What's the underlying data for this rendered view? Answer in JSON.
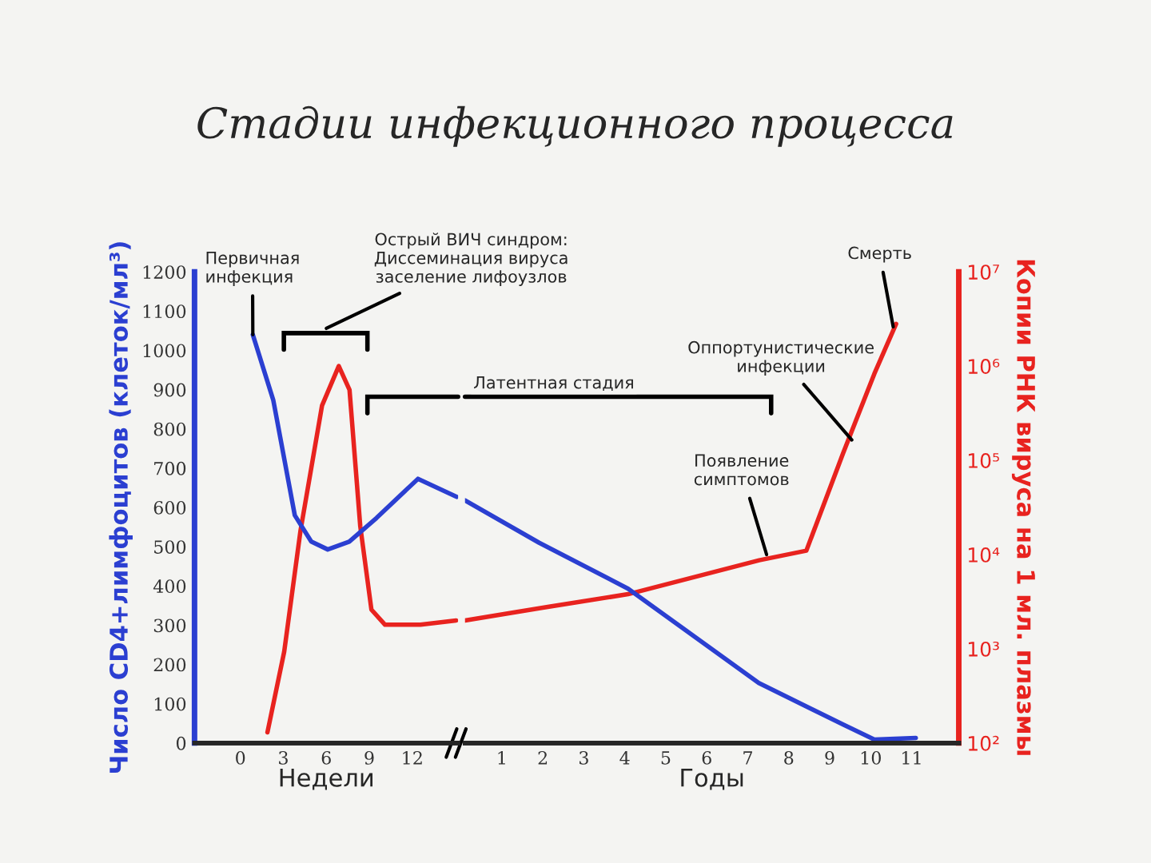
{
  "chart_data": [
    {
      "type": "line",
      "title": "Стадии инфекционного процесса",
      "xlabel": "Недели",
      "ylabel": "Число CD4+лимфоцитов (клеток/мл³)",
      "xlim": [
        -3.2,
        15.2
      ],
      "xticks": [
        0,
        3,
        6,
        9,
        12
      ],
      "ylim": [
        0,
        1200
      ],
      "yticks": [
        0,
        100,
        200,
        300,
        400,
        500,
        600,
        700,
        800,
        900,
        1000,
        1100,
        1200
      ],
      "log": "y2",
      "y2lim": [
        100,
        10000000
      ],
      "series": [
        {
          "color": "#2b3fd1",
          "x": [
            0.87,
            2.3,
            3.8,
            4.95,
            6.1,
            7.6,
            9.5,
            12.4,
            15.1
          ],
          "values": [
            1040,
            873,
            580,
            513,
            493,
            513,
            573,
            673,
            627
          ]
        },
        {
          "color": "#e8231f",
          "axis": "y2",
          "x": [
            1.89,
            3.06,
            4.2,
            5.7,
            6.87,
            7.62,
            8.37,
            9.15,
            10.1,
            12.57,
            15.06
          ],
          "values": [
            130,
            930,
            18000,
            380000,
            1000000,
            560000,
            20000,
            2600,
            1800,
            1800,
            2000
          ]
        }
      ],
      "annotations": [
        {
          "text": "Первичная\nинфекция",
          "x": 0.87,
          "y": 1040
        },
        "Острый ВИЧ синдром:\nДиссеминация вируса\nзаселение лифоузлов"
      ]
    },
    {
      "type": "line",
      "xlabel": "Годы",
      "y2label": "Копии РНК вируса на 1 мл. плазмы",
      "xlim": [
        0.1,
        12.15
      ],
      "xticks": [
        1,
        2,
        3,
        4,
        5,
        6,
        7,
        8,
        9,
        10,
        11
      ],
      "ylim": [
        0,
        1200
      ],
      "log": "y2",
      "y2lim": [
        100,
        10000000
      ],
      "y2ticks": [
        {
          "value": 100,
          "label": "10²"
        },
        {
          "value": 1000,
          "label": "10³"
        },
        {
          "value": 10000,
          "label": "10⁴"
        },
        {
          "value": 100000,
          "label": "10⁵"
        },
        {
          "value": 1000000,
          "label": "10⁶"
        },
        {
          "value": 10000000,
          "label": "10⁷"
        }
      ],
      "series": [
        {
          "color": "#2b3fd1",
          "x": [
            0.1,
            1.91,
            4.08,
            7.27,
            9.33,
            10.09,
            11.1
          ],
          "values": [
            618,
            510,
            393,
            153,
            47,
            9,
            13
          ]
        },
        {
          "color": "#e8231f",
          "axis": "y2",
          "x": [
            0.1,
            2.15,
            4.08,
            7.28,
            8.43,
            9.33,
            10.09,
            10.62
          ],
          "values": [
            2000,
            2800,
            3800,
            8700,
            11000,
            120000,
            830000,
            2800000
          ]
        }
      ],
      "annotations": [
        "Латентная стадия",
        {
          "text": "Смерть",
          "x": 10.55,
          "y": 1060
        },
        {
          "text": "Оппортунистические\nинфекции",
          "x": 9.54,
          "y": 772
        },
        {
          "text": "Появление\nсимптомов",
          "x": 7.46,
          "y": 480
        }
      ]
    }
  ]
}
